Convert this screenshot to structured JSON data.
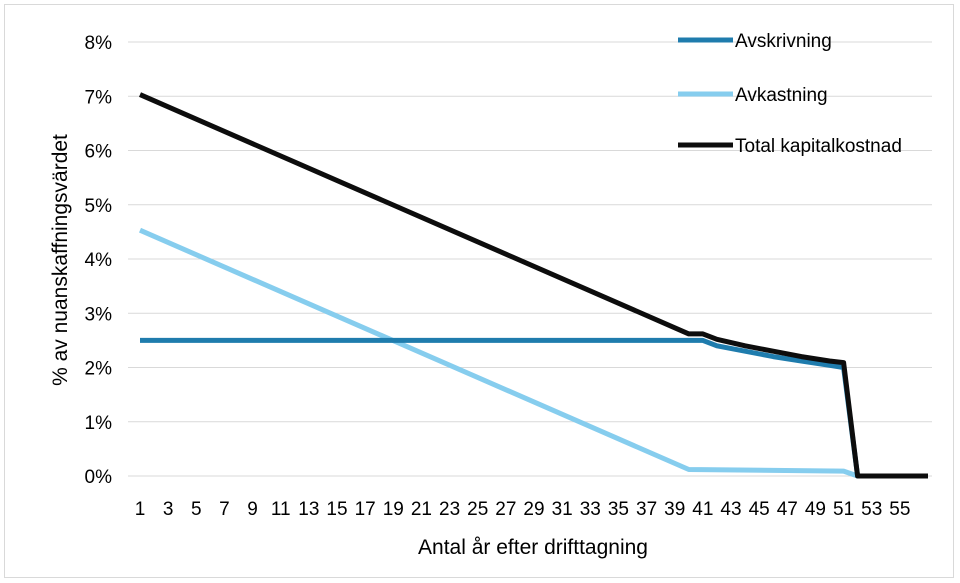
{
  "chart_data": {
    "type": "line",
    "title": "",
    "xlabel": "Antal år efter drifttagning",
    "ylabel": "% av nuanskaffningsvärdet",
    "y_ticks": [
      "0%",
      "1%",
      "2%",
      "3%",
      "4%",
      "5%",
      "6%",
      "7%",
      "8%"
    ],
    "ylim": [
      0,
      8
    ],
    "x_tick_labels": [
      "1",
      "3",
      "5",
      "7",
      "9",
      "11",
      "13",
      "15",
      "17",
      "19",
      "21",
      "23",
      "25",
      "27",
      "29",
      "31",
      "33",
      "35",
      "37",
      "39",
      "41",
      "43",
      "45",
      "47",
      "49",
      "51",
      "53",
      "55"
    ],
    "xlim": [
      1,
      57
    ],
    "grid": "horizontal",
    "legend_position": "top-right",
    "series": [
      {
        "name": "Avskrivning",
        "color": "#1f7cad",
        "points": [
          [
            1,
            2.5
          ],
          [
            40,
            2.5
          ],
          [
            41,
            2.5
          ],
          [
            42,
            2.4
          ],
          [
            44,
            2.3
          ],
          [
            46,
            2.2
          ],
          [
            48,
            2.12
          ],
          [
            50,
            2.04
          ],
          [
            51,
            2.0
          ],
          [
            52,
            0
          ],
          [
            57,
            0
          ]
        ]
      },
      {
        "name": "Avkastning",
        "color": "#86cdee",
        "points": [
          [
            1,
            4.53
          ],
          [
            40,
            0.12
          ],
          [
            51,
            0.09
          ],
          [
            52,
            0
          ],
          [
            57,
            0
          ]
        ]
      },
      {
        "name": "Total kapitalkostnad",
        "color": "#0d0d0d",
        "points": [
          [
            1,
            7.03
          ],
          [
            40,
            2.62
          ],
          [
            41,
            2.62
          ],
          [
            42,
            2.52
          ],
          [
            44,
            2.4
          ],
          [
            46,
            2.3
          ],
          [
            48,
            2.2
          ],
          [
            50,
            2.12
          ],
          [
            51,
            2.09
          ],
          [
            52,
            0
          ],
          [
            57,
            0
          ]
        ]
      }
    ]
  }
}
